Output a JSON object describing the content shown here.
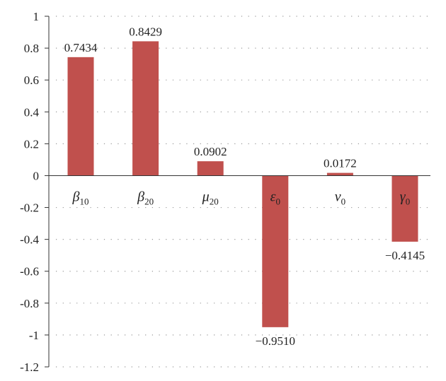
{
  "chart_data": {
    "type": "bar",
    "title": "",
    "xlabel": "",
    "ylabel": "",
    "ylim": [
      -1.2,
      1
    ],
    "yticks": [
      1,
      0.8,
      0.6,
      0.4,
      0.2,
      0,
      -0.2,
      -0.4,
      -0.6,
      -0.8,
      -1,
      -1.2
    ],
    "ytick_labels": [
      "1",
      "0.8",
      "0.6",
      "0.4",
      "0.2",
      "0",
      "-0.2",
      "-0.4",
      "-0.6",
      "-0.8",
      "-1",
      "-1.2"
    ],
    "grid": "dotted horizontal",
    "bar_color": "#c0504d",
    "categories": [
      {
        "symbol": "β",
        "sub": "10"
      },
      {
        "symbol": "β",
        "sub": "20"
      },
      {
        "symbol": "μ",
        "sub": "20"
      },
      {
        "symbol": "ε",
        "sub": "0"
      },
      {
        "symbol": "ν",
        "sub": "0"
      },
      {
        "symbol": "γ",
        "sub": "0"
      }
    ],
    "values": [
      0.7434,
      0.8429,
      0.0902,
      -0.951,
      0.0172,
      -0.4145
    ],
    "value_labels": [
      "0.7434",
      "0.8429",
      "0.0902",
      "−0.9510",
      "0.0172",
      "−0.4145"
    ]
  }
}
